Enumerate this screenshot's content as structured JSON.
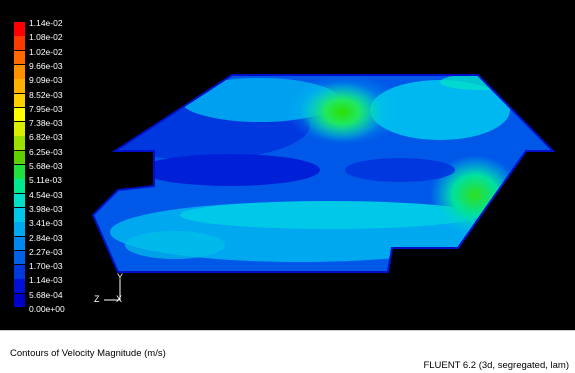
{
  "colors": {
    "viewport_background": "#000000",
    "footer_background": "#ffffff",
    "legend_scale": [
      "#ff0000",
      "#ff3a00",
      "#ff6a00",
      "#ff9000",
      "#ffb000",
      "#ffd000",
      "#ffff00",
      "#d8f000",
      "#9ce000",
      "#5ed000",
      "#20e040",
      "#00e890",
      "#00e0c8",
      "#00c8e8",
      "#00a8f0",
      "#0088f0",
      "#0060e8",
      "#0038e0",
      "#0010d8",
      "#0000c8"
    ]
  },
  "legend": {
    "labels": [
      "1.14e-02",
      "1.08e-02",
      "1.02e-02",
      "9.66e-03",
      "9.09e-03",
      "8.52e-03",
      "7.95e-03",
      "7.38e-03",
      "6.82e-03",
      "6.25e-03",
      "5.68e-03",
      "5.11e-03",
      "4.54e-03",
      "3.98e-03",
      "3.41e-03",
      "2.84e-03",
      "2.27e-03",
      "1.70e-03",
      "1.14e-03",
      "5.68e-04",
      "0.00e+00"
    ]
  },
  "axes": {
    "vertical": "Y",
    "horizontal": "X",
    "depth": "Z"
  },
  "footer": {
    "caption": "Contours of Velocity Magnitude (m/s)",
    "solver": "FLUENT 6.2 (3d, segregated, lam)"
  }
}
